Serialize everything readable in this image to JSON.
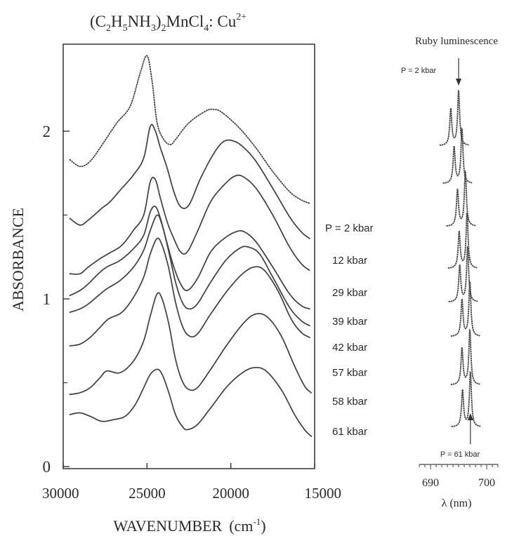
{
  "chart_data": [
    {
      "type": "line",
      "title_parts": {
        "a": "(C",
        "b": "2",
        "c": "H",
        "d": "5",
        "e": "NH",
        "f": "3",
        "g": ")",
        "h": "2",
        "i": "MnCl",
        "j": "4",
        "k": ": Cu",
        "l": "2+"
      },
      "xlabel_text": "WAVENUMBER",
      "xlabel_unit": {
        "open": "(cm",
        "exp": "-1",
        "close": ")"
      },
      "ylabel": "ABSORBANCE",
      "xlim": [
        30000,
        15000
      ],
      "ylim": [
        0,
        2.45
      ],
      "x_ticks": [
        30000,
        25000,
        20000,
        15000
      ],
      "x_tick_labels": [
        "30000",
        "25000",
        "20000",
        "15000"
      ],
      "y_ticks": [
        0,
        1,
        2
      ],
      "y_tick_labels": [
        "0",
        "1",
        "2"
      ],
      "y_minor_ticks": [
        0.5,
        1.5
      ],
      "grid": false,
      "series": [
        {
          "name": "P = 2 kbar",
          "values": [
            [
              29600,
              1.83
            ],
            [
              29000,
              1.79
            ],
            [
              28400,
              1.82
            ],
            [
              27600,
              1.93
            ],
            [
              26800,
              2.05
            ],
            [
              26000,
              2.15
            ],
            [
              25400,
              2.35
            ],
            [
              25000,
              2.45
            ],
            [
              24700,
              2.3
            ],
            [
              24400,
              2.05
            ],
            [
              24000,
              1.95
            ],
            [
              23600,
              1.92
            ],
            [
              23300,
              1.95
            ],
            [
              22500,
              2.05
            ],
            [
              21500,
              2.12
            ],
            [
              21000,
              2.13
            ],
            [
              20500,
              2.11
            ],
            [
              19500,
              2.02
            ],
            [
              18500,
              1.9
            ],
            [
              17500,
              1.76
            ],
            [
              16500,
              1.64
            ],
            [
              15800,
              1.59
            ],
            [
              15300,
              1.57
            ]
          ]
        },
        {
          "name": "12 kbar",
          "values": [
            [
              29600,
              1.48
            ],
            [
              29000,
              1.44
            ],
            [
              28500,
              1.47
            ],
            [
              27700,
              1.54
            ],
            [
              27200,
              1.58
            ],
            [
              26500,
              1.66
            ],
            [
              25800,
              1.74
            ],
            [
              25200,
              1.84
            ],
            [
              24800,
              2.03
            ],
            [
              24500,
              2.0
            ],
            [
              24200,
              1.9
            ],
            [
              23800,
              1.78
            ],
            [
              23400,
              1.64
            ],
            [
              23000,
              1.55
            ],
            [
              22500,
              1.56
            ],
            [
              21800,
              1.72
            ],
            [
              21000,
              1.87
            ],
            [
              20400,
              1.94
            ],
            [
              19800,
              1.94
            ],
            [
              19200,
              1.9
            ],
            [
              18500,
              1.82
            ],
            [
              17500,
              1.66
            ],
            [
              16500,
              1.49
            ],
            [
              15800,
              1.4
            ],
            [
              15300,
              1.36
            ]
          ]
        },
        {
          "name": "29 kbar",
          "values": [
            [
              29600,
              1.15
            ],
            [
              29000,
              1.15
            ],
            [
              28500,
              1.19
            ],
            [
              27800,
              1.24
            ],
            [
              27300,
              1.27
            ],
            [
              26500,
              1.32
            ],
            [
              25800,
              1.41
            ],
            [
              25200,
              1.5
            ],
            [
              24800,
              1.7
            ],
            [
              24500,
              1.71
            ],
            [
              24200,
              1.6
            ],
            [
              23800,
              1.46
            ],
            [
              23400,
              1.36
            ],
            [
              23000,
              1.28
            ],
            [
              22600,
              1.28
            ],
            [
              22000,
              1.4
            ],
            [
              21200,
              1.58
            ],
            [
              20400,
              1.68
            ],
            [
              19800,
              1.73
            ],
            [
              19300,
              1.73
            ],
            [
              18500,
              1.66
            ],
            [
              17500,
              1.5
            ],
            [
              16500,
              1.31
            ],
            [
              15800,
              1.21
            ],
            [
              15300,
              1.17
            ]
          ]
        },
        {
          "name": "39 kbar",
          "values": [
            [
              29600,
              1.02
            ],
            [
              29000,
              1.05
            ],
            [
              28500,
              1.09
            ],
            [
              27900,
              1.15
            ],
            [
              27400,
              1.19
            ],
            [
              26600,
              1.23
            ],
            [
              25800,
              1.3
            ],
            [
              25200,
              1.38
            ],
            [
              24800,
              1.52
            ],
            [
              24500,
              1.55
            ],
            [
              24200,
              1.48
            ],
            [
              23800,
              1.33
            ],
            [
              23400,
              1.19
            ],
            [
              23000,
              1.09
            ],
            [
              22600,
              1.05
            ],
            [
              22000,
              1.12
            ],
            [
              21200,
              1.28
            ],
            [
              20400,
              1.36
            ],
            [
              19700,
              1.4
            ],
            [
              19200,
              1.4
            ],
            [
              18500,
              1.34
            ],
            [
              17500,
              1.19
            ],
            [
              16500,
              1.03
            ],
            [
              15800,
              0.96
            ],
            [
              15300,
              0.94
            ]
          ]
        },
        {
          "name": "42 kbar",
          "values": [
            [
              29600,
              0.92
            ],
            [
              29000,
              0.94
            ],
            [
              28500,
              0.97
            ],
            [
              27900,
              1.02
            ],
            [
              27400,
              1.06
            ],
            [
              26600,
              1.11
            ],
            [
              25800,
              1.19
            ],
            [
              25200,
              1.29
            ],
            [
              24800,
              1.41
            ],
            [
              24400,
              1.5
            ],
            [
              24100,
              1.44
            ],
            [
              23700,
              1.28
            ],
            [
              23300,
              1.1
            ],
            [
              22900,
              0.98
            ],
            [
              22500,
              0.94
            ],
            [
              22000,
              0.97
            ],
            [
              21200,
              1.1
            ],
            [
              20300,
              1.23
            ],
            [
              19500,
              1.3
            ],
            [
              19000,
              1.31
            ],
            [
              18300,
              1.27
            ],
            [
              17500,
              1.13
            ],
            [
              16500,
              0.95
            ],
            [
              15800,
              0.87
            ],
            [
              15300,
              0.84
            ]
          ]
        },
        {
          "name": "57 kbar",
          "values": [
            [
              29600,
              0.72
            ],
            [
              29000,
              0.73
            ],
            [
              28400,
              0.77
            ],
            [
              27800,
              0.83
            ],
            [
              27300,
              0.88
            ],
            [
              26500,
              0.92
            ],
            [
              25800,
              1.01
            ],
            [
              25200,
              1.13
            ],
            [
              24800,
              1.27
            ],
            [
              24400,
              1.36
            ],
            [
              24100,
              1.32
            ],
            [
              23700,
              1.18
            ],
            [
              23300,
              0.98
            ],
            [
              22900,
              0.84
            ],
            [
              22500,
              0.78
            ],
            [
              22000,
              0.79
            ],
            [
              21200,
              0.91
            ],
            [
              20200,
              1.05
            ],
            [
              19300,
              1.15
            ],
            [
              18600,
              1.19
            ],
            [
              18000,
              1.17
            ],
            [
              17200,
              1.05
            ],
            [
              16400,
              0.88
            ],
            [
              15800,
              0.8
            ],
            [
              15300,
              0.77
            ]
          ]
        },
        {
          "name": "58 kbar",
          "values": [
            [
              29600,
              0.43
            ],
            [
              29000,
              0.44
            ],
            [
              28400,
              0.47
            ],
            [
              27800,
              0.53
            ],
            [
              27400,
              0.57
            ],
            [
              26600,
              0.56
            ],
            [
              25800,
              0.63
            ],
            [
              25200,
              0.75
            ],
            [
              24800,
              0.9
            ],
            [
              24400,
              1.03
            ],
            [
              24100,
              1.0
            ],
            [
              23700,
              0.85
            ],
            [
              23300,
              0.64
            ],
            [
              22900,
              0.51
            ],
            [
              22500,
              0.46
            ],
            [
              22000,
              0.47
            ],
            [
              21200,
              0.58
            ],
            [
              20200,
              0.73
            ],
            [
              19200,
              0.86
            ],
            [
              18500,
              0.91
            ],
            [
              17800,
              0.89
            ],
            [
              17000,
              0.78
            ],
            [
              16200,
              0.6
            ],
            [
              15600,
              0.48
            ],
            [
              15200,
              0.44
            ]
          ]
        },
        {
          "name": "61 kbar",
          "values": [
            [
              29600,
              0.31
            ],
            [
              29000,
              0.32
            ],
            [
              28400,
              0.3
            ],
            [
              27700,
              0.27
            ],
            [
              27000,
              0.28
            ],
            [
              26300,
              0.3
            ],
            [
              25700,
              0.37
            ],
            [
              25200,
              0.47
            ],
            [
              24800,
              0.55
            ],
            [
              24400,
              0.58
            ],
            [
              24100,
              0.55
            ],
            [
              23700,
              0.44
            ],
            [
              23300,
              0.31
            ],
            [
              22900,
              0.24
            ],
            [
              22600,
              0.22
            ],
            [
              22000,
              0.25
            ],
            [
              21200,
              0.35
            ],
            [
              20200,
              0.48
            ],
            [
              19300,
              0.56
            ],
            [
              18600,
              0.59
            ],
            [
              17900,
              0.57
            ],
            [
              17000,
              0.46
            ],
            [
              16200,
              0.31
            ],
            [
              15600,
              0.22
            ],
            [
              15200,
              0.18
            ]
          ]
        }
      ]
    },
    {
      "type": "line",
      "title": "Ruby luminescence",
      "xlabel": "λ (nm)",
      "xlim": [
        688,
        702
      ],
      "x_ticks": [
        690,
        700
      ],
      "x_tick_labels": [
        "690",
        "700"
      ],
      "arrow_top_label": "P = 2 kbar",
      "arrow_bottom_label": "P = 61 kbar",
      "series": [
        {
          "pressure_kbar": 2,
          "R2_nm": 693.6,
          "R1_nm": 695.0
        },
        {
          "pressure_kbar": 12,
          "R2_nm": 694.2,
          "R1_nm": 695.6
        },
        {
          "pressure_kbar": 29,
          "R2_nm": 694.8,
          "R1_nm": 696.2
        },
        {
          "pressure_kbar": 39,
          "R2_nm": 695.1,
          "R1_nm": 696.5
        },
        {
          "pressure_kbar": 42,
          "R2_nm": 695.2,
          "R1_nm": 696.6
        },
        {
          "pressure_kbar": 57,
          "R2_nm": 695.6,
          "R1_nm": 697.0
        },
        {
          "pressure_kbar": 58,
          "R2_nm": 695.6,
          "R1_nm": 697.0
        },
        {
          "pressure_kbar": 61,
          "R2_nm": 695.7,
          "R1_nm": 697.1
        }
      ]
    }
  ]
}
